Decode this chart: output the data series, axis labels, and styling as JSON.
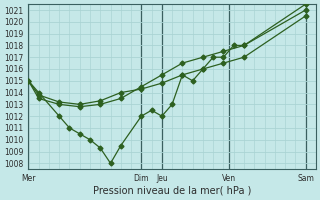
{
  "xlabel": "Pression niveau de la mer( hPa )",
  "bg_color": "#c5e8e8",
  "grid_color": "#b0d8d8",
  "line_color": "#2d6020",
  "vline_color": "#3a6060",
  "ylim": [
    1007.5,
    1021.5
  ],
  "yticks": [
    1008,
    1009,
    1010,
    1011,
    1012,
    1013,
    1014,
    1015,
    1016,
    1017,
    1018,
    1019,
    1020,
    1021
  ],
  "xlim": [
    0,
    28
  ],
  "vline_positions": [
    0,
    11,
    13,
    19.5,
    27
  ],
  "day_labels": [
    "Mer",
    "Dim",
    "Jeu",
    "Ven",
    "Sam"
  ],
  "line1_x": [
    0,
    1,
    3,
    4,
    5,
    6,
    7,
    8,
    9,
    11,
    12,
    13,
    14,
    15,
    16,
    17,
    18,
    19,
    20,
    21,
    27
  ],
  "line1_y": [
    1015.0,
    1014.0,
    1012.0,
    1011.0,
    1010.5,
    1010.0,
    1009.3,
    1008.0,
    1009.5,
    1012.0,
    1012.5,
    1012.0,
    1013.0,
    1015.5,
    1015.0,
    1016.0,
    1017.0,
    1017.0,
    1018.0,
    1018.0,
    1021.0
  ],
  "line2_x": [
    0,
    1,
    3,
    5,
    7,
    9,
    11,
    13,
    15,
    17,
    19,
    21,
    27
  ],
  "line2_y": [
    1015.0,
    1013.8,
    1013.2,
    1013.0,
    1013.3,
    1014.0,
    1014.3,
    1014.8,
    1015.5,
    1016.0,
    1016.5,
    1017.0,
    1020.5
  ],
  "line3_x": [
    0,
    1,
    3,
    5,
    7,
    9,
    11,
    13,
    15,
    17,
    19,
    21,
    27
  ],
  "line3_y": [
    1015.0,
    1013.5,
    1013.0,
    1012.8,
    1013.0,
    1013.5,
    1014.5,
    1015.5,
    1016.5,
    1017.0,
    1017.5,
    1018.0,
    1021.5
  ],
  "xlabel_fontsize": 7,
  "tick_fontsize": 5.5
}
